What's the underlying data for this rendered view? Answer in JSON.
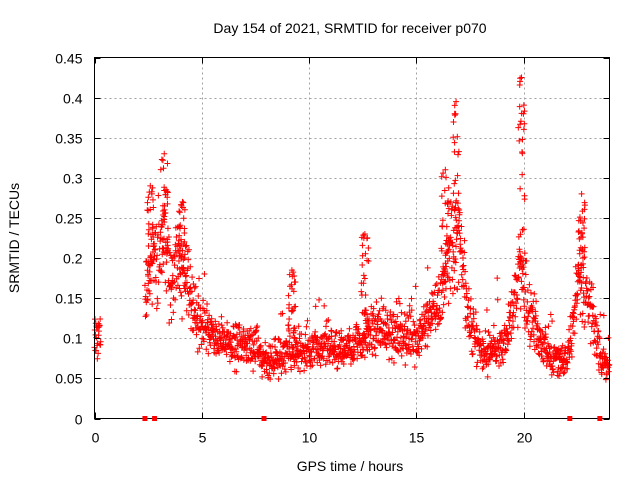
{
  "chart_data": {
    "type": "scatter",
    "title": "Day 154 of 2021, SRMTID for receiver p070",
    "xlabel": "GPS time / hours",
    "ylabel": "SRMTID / TECUs",
    "xlim": [
      0,
      24
    ],
    "ylim": [
      0,
      0.45
    ],
    "x_ticks": [
      0,
      5,
      10,
      15,
      20
    ],
    "x_tick_labels": [
      "0",
      "5",
      "10",
      "15",
      "20"
    ],
    "y_ticks": [
      0,
      0.05,
      0.1,
      0.15,
      0.2,
      0.25,
      0.3,
      0.35,
      0.4,
      0.45
    ],
    "y_tick_labels": [
      "0",
      "0.05",
      "0.1",
      "0.15",
      "0.2",
      "0.25",
      "0.3",
      "0.35",
      "0.4",
      "0.45"
    ],
    "grid": true,
    "marker": "plus",
    "color": "#ff0000",
    "axis_markers_x": [
      2.35,
      2.8,
      7.9,
      22.15,
      23.55
    ],
    "envelope": {
      "x": [
        0,
        0.3,
        0.35,
        2.35,
        2.5,
        3.0,
        3.3,
        3.6,
        4.0,
        4.4,
        4.8,
        5.2,
        6.0,
        7.0,
        7.6,
        8.0,
        8.5,
        9.0,
        10.0,
        11.0,
        12.0,
        12.5,
        13.0,
        14.0,
        15.0,
        15.5,
        16.0,
        16.5,
        16.9,
        17.2,
        17.5,
        18.0,
        19.0,
        19.5,
        19.9,
        20.3,
        21.0,
        21.5,
        22.0,
        22.3,
        22.7,
        23.0,
        23.3,
        23.6,
        24.0
      ],
      "y": [
        0.11,
        0.11,
        null,
        0.14,
        0.17,
        0.21,
        0.22,
        0.17,
        0.19,
        0.16,
        0.13,
        0.11,
        0.09,
        0.09,
        0.09,
        0.07,
        0.075,
        0.085,
        0.085,
        0.09,
        0.085,
        0.1,
        0.11,
        0.11,
        0.1,
        0.12,
        0.14,
        0.2,
        0.22,
        0.18,
        0.12,
        0.08,
        0.09,
        0.13,
        0.19,
        0.12,
        0.09,
        0.07,
        0.07,
        0.12,
        0.18,
        0.15,
        0.11,
        0.075,
        0.06
      ]
    },
    "spikes": [
      {
        "x": 3.25,
        "peak": 0.33
      },
      {
        "x": 4.1,
        "peak": 0.27
      },
      {
        "x": 2.6,
        "peak": 0.29
      },
      {
        "x": 12.6,
        "peak": 0.23
      },
      {
        "x": 16.35,
        "peak": 0.31
      },
      {
        "x": 16.85,
        "peak": 0.395
      },
      {
        "x": 19.9,
        "peak": 0.425
      },
      {
        "x": 22.7,
        "peak": 0.28
      },
      {
        "x": 9.2,
        "peak": 0.185
      }
    ]
  }
}
